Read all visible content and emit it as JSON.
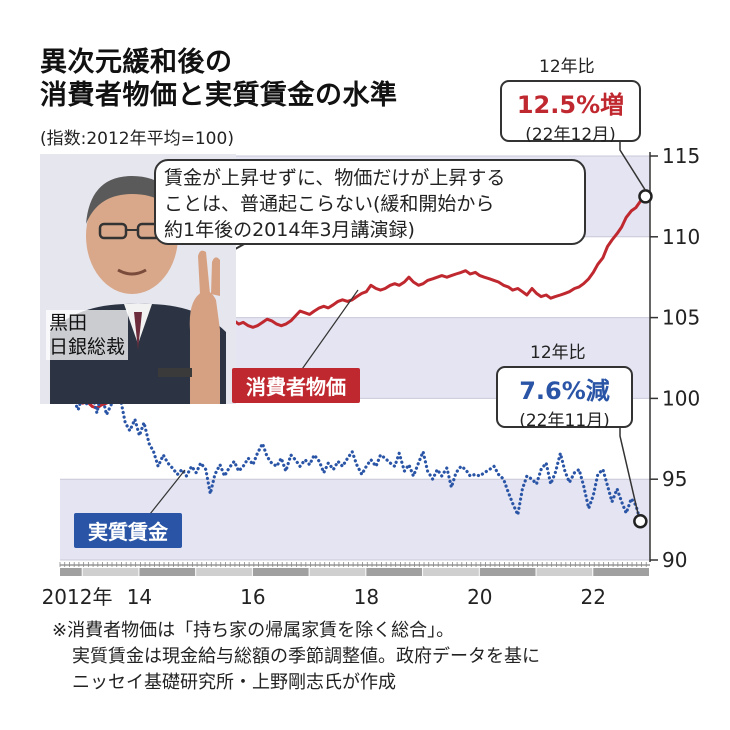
{
  "title_line1": "異次元緩和後の",
  "title_line2": "消費者物価と実質賃金の水準",
  "subtitle": "(指数:2012年平均=100)",
  "quote": {
    "line1": "賃金が上昇せずに、物価だけが上昇する",
    "line2": "ことは、普通起こらない(緩和開始から",
    "line3": "約1年後の2014年3月講演録)"
  },
  "person": {
    "line1": "黒田",
    "line2": "日銀総裁"
  },
  "cpi_callout": {
    "tag": "12年比",
    "value": "12.5%増",
    "date": "(22年12月)",
    "color": "#c0282f"
  },
  "wage_callout": {
    "tag": "12年比",
    "value": "7.6%減",
    "date": "(22年11月)",
    "color": "#2a55a6"
  },
  "footnote": {
    "line1": "※消費者物価は「持ち家の帰属家賃を除く総合」。",
    "line2": "実質賃金は現金給与総額の季節調整値。政府データを基に",
    "line3": "ニッセイ基礎研究所・上野剛志氏が作成"
  },
  "chart_data": {
    "type": "line",
    "x_unit": "year",
    "xlim": [
      2012.6,
      2023.0
    ],
    "ylim": [
      90,
      115
    ],
    "y_ticks": [
      90,
      95,
      100,
      105,
      110,
      115
    ],
    "x_ticks": [
      {
        "x": 2012.9,
        "label": "2012年"
      },
      {
        "x": 2014,
        "label": "14"
      },
      {
        "x": 2016,
        "label": "16"
      },
      {
        "x": 2018,
        "label": "18"
      },
      {
        "x": 2020,
        "label": "20"
      },
      {
        "x": 2022,
        "label": "22"
      }
    ],
    "bands": [
      [
        110,
        115
      ],
      [
        100,
        105
      ],
      [
        90,
        95
      ]
    ],
    "series": [
      {
        "name": "消費者物価",
        "color": "#c0282f",
        "style": "solid",
        "points": [
          [
            2012.67,
            100.2
          ],
          [
            2012.75,
            100.5
          ],
          [
            2012.83,
            100.1
          ],
          [
            2012.92,
            99.9
          ],
          [
            2013.0,
            99.7
          ],
          [
            2013.08,
            99.8
          ],
          [
            2013.17,
            99.5
          ],
          [
            2013.25,
            99.4
          ],
          [
            2013.33,
            99.6
          ],
          [
            2013.42,
            99.7
          ],
          [
            2013.5,
            100.0
          ],
          [
            2013.58,
            100.5
          ],
          [
            2013.67,
            101.0
          ],
          [
            2013.75,
            101.2
          ],
          [
            2013.83,
            101.4
          ],
          [
            2013.92,
            101.6
          ],
          [
            2014.0,
            101.5
          ],
          [
            2014.08,
            101.6
          ],
          [
            2014.17,
            101.8
          ],
          [
            2014.25,
            104.0
          ],
          [
            2014.33,
            104.6
          ],
          [
            2014.42,
            104.9
          ],
          [
            2014.5,
            104.7
          ],
          [
            2014.58,
            105.0
          ],
          [
            2014.67,
            105.2
          ],
          [
            2014.75,
            105.0
          ],
          [
            2014.83,
            104.8
          ],
          [
            2014.92,
            104.6
          ],
          [
            2015.0,
            104.4
          ],
          [
            2015.08,
            104.6
          ],
          [
            2015.17,
            104.9
          ],
          [
            2015.25,
            105.2
          ],
          [
            2015.33,
            105.3
          ],
          [
            2015.42,
            105.1
          ],
          [
            2015.5,
            104.9
          ],
          [
            2015.58,
            105.0
          ],
          [
            2015.67,
            104.8
          ],
          [
            2015.75,
            104.6
          ],
          [
            2015.83,
            104.7
          ],
          [
            2015.92,
            104.5
          ],
          [
            2016.0,
            104.4
          ],
          [
            2016.08,
            104.5
          ],
          [
            2016.17,
            104.7
          ],
          [
            2016.25,
            104.9
          ],
          [
            2016.33,
            104.8
          ],
          [
            2016.42,
            104.6
          ],
          [
            2016.5,
            104.5
          ],
          [
            2016.58,
            104.6
          ],
          [
            2016.67,
            104.8
          ],
          [
            2016.75,
            105.1
          ],
          [
            2016.83,
            105.4
          ],
          [
            2016.92,
            105.3
          ],
          [
            2017.0,
            105.2
          ],
          [
            2017.08,
            105.4
          ],
          [
            2017.17,
            105.6
          ],
          [
            2017.25,
            105.7
          ],
          [
            2017.33,
            105.6
          ],
          [
            2017.42,
            105.8
          ],
          [
            2017.5,
            106.0
          ],
          [
            2017.58,
            106.1
          ],
          [
            2017.67,
            106.0
          ],
          [
            2017.75,
            106.1
          ],
          [
            2017.83,
            106.3
          ],
          [
            2017.92,
            106.5
          ],
          [
            2018.0,
            106.6
          ],
          [
            2018.08,
            107.0
          ],
          [
            2018.17,
            106.8
          ],
          [
            2018.25,
            106.7
          ],
          [
            2018.33,
            106.8
          ],
          [
            2018.42,
            107.0
          ],
          [
            2018.5,
            107.1
          ],
          [
            2018.58,
            107.0
          ],
          [
            2018.67,
            107.2
          ],
          [
            2018.75,
            107.5
          ],
          [
            2018.83,
            107.2
          ],
          [
            2018.92,
            107.0
          ],
          [
            2019.0,
            107.1
          ],
          [
            2019.08,
            107.3
          ],
          [
            2019.17,
            107.4
          ],
          [
            2019.25,
            107.5
          ],
          [
            2019.33,
            107.6
          ],
          [
            2019.42,
            107.5
          ],
          [
            2019.5,
            107.6
          ],
          [
            2019.58,
            107.7
          ],
          [
            2019.67,
            107.8
          ],
          [
            2019.75,
            107.9
          ],
          [
            2019.83,
            107.7
          ],
          [
            2019.92,
            107.8
          ],
          [
            2020.0,
            107.6
          ],
          [
            2020.08,
            107.5
          ],
          [
            2020.17,
            107.4
          ],
          [
            2020.25,
            107.3
          ],
          [
            2020.33,
            107.2
          ],
          [
            2020.42,
            107.0
          ],
          [
            2020.5,
            106.9
          ],
          [
            2020.58,
            106.7
          ],
          [
            2020.67,
            106.8
          ],
          [
            2020.75,
            106.6
          ],
          [
            2020.83,
            106.4
          ],
          [
            2020.92,
            106.8
          ],
          [
            2021.0,
            106.5
          ],
          [
            2021.08,
            106.3
          ],
          [
            2021.17,
            106.4
          ],
          [
            2021.25,
            106.2
          ],
          [
            2021.33,
            106.3
          ],
          [
            2021.42,
            106.4
          ],
          [
            2021.5,
            106.5
          ],
          [
            2021.58,
            106.6
          ],
          [
            2021.67,
            106.8
          ],
          [
            2021.75,
            106.9
          ],
          [
            2021.83,
            107.1
          ],
          [
            2021.92,
            107.4
          ],
          [
            2022.0,
            107.8
          ],
          [
            2022.08,
            108.3
          ],
          [
            2022.17,
            108.7
          ],
          [
            2022.25,
            109.4
          ],
          [
            2022.33,
            109.8
          ],
          [
            2022.42,
            110.2
          ],
          [
            2022.5,
            110.6
          ],
          [
            2022.58,
            111.2
          ],
          [
            2022.67,
            111.6
          ],
          [
            2022.75,
            111.8
          ],
          [
            2022.83,
            112.2
          ],
          [
            2022.92,
            112.5
          ]
        ]
      },
      {
        "name": "実質賃金",
        "color": "#2a55a6",
        "style": "dotted",
        "points": [
          [
            2012.67,
            100.3
          ],
          [
            2012.75,
            100.5
          ],
          [
            2012.83,
            100.0
          ],
          [
            2012.92,
            99.3
          ],
          [
            2013.0,
            100.2
          ],
          [
            2013.08,
            99.6
          ],
          [
            2013.17,
            100.3
          ],
          [
            2013.25,
            99.1
          ],
          [
            2013.33,
            100.4
          ],
          [
            2013.42,
            99.0
          ],
          [
            2013.5,
            99.6
          ],
          [
            2013.58,
            100.3
          ],
          [
            2013.67,
            99.9
          ],
          [
            2013.75,
            98.5
          ],
          [
            2013.83,
            98.0
          ],
          [
            2013.92,
            98.7
          ],
          [
            2014.0,
            97.7
          ],
          [
            2014.08,
            98.5
          ],
          [
            2014.17,
            97.2
          ],
          [
            2014.25,
            96.7
          ],
          [
            2014.33,
            95.8
          ],
          [
            2014.42,
            96.5
          ],
          [
            2014.5,
            96.0
          ],
          [
            2014.58,
            95.7
          ],
          [
            2014.67,
            95.3
          ],
          [
            2014.75,
            95.6
          ],
          [
            2014.83,
            95.2
          ],
          [
            2014.92,
            95.8
          ],
          [
            2015.0,
            95.4
          ],
          [
            2015.08,
            96.0
          ],
          [
            2015.17,
            95.6
          ],
          [
            2015.25,
            94.1
          ],
          [
            2015.33,
            95.3
          ],
          [
            2015.42,
            95.9
          ],
          [
            2015.5,
            95.2
          ],
          [
            2015.58,
            95.7
          ],
          [
            2015.67,
            96.1
          ],
          [
            2015.75,
            95.5
          ],
          [
            2015.83,
            95.8
          ],
          [
            2015.92,
            96.3
          ],
          [
            2016.0,
            95.9
          ],
          [
            2016.08,
            96.6
          ],
          [
            2016.17,
            97.2
          ],
          [
            2016.25,
            96.4
          ],
          [
            2016.33,
            96.0
          ],
          [
            2016.42,
            95.8
          ],
          [
            2016.5,
            96.3
          ],
          [
            2016.58,
            95.5
          ],
          [
            2016.67,
            96.5
          ],
          [
            2016.75,
            96.2
          ],
          [
            2016.83,
            95.8
          ],
          [
            2016.92,
            96.2
          ],
          [
            2017.0,
            95.9
          ],
          [
            2017.08,
            96.5
          ],
          [
            2017.17,
            96.1
          ],
          [
            2017.25,
            95.4
          ],
          [
            2017.33,
            96.0
          ],
          [
            2017.42,
            95.6
          ],
          [
            2017.5,
            96.1
          ],
          [
            2017.58,
            95.8
          ],
          [
            2017.67,
            96.3
          ],
          [
            2017.75,
            96.7
          ],
          [
            2017.83,
            95.9
          ],
          [
            2017.92,
            95.3
          ],
          [
            2018.0,
            95.8
          ],
          [
            2018.08,
            96.2
          ],
          [
            2018.17,
            95.8
          ],
          [
            2018.25,
            96.5
          ],
          [
            2018.33,
            96.3
          ],
          [
            2018.42,
            96.0
          ],
          [
            2018.5,
            95.8
          ],
          [
            2018.58,
            96.6
          ],
          [
            2018.67,
            95.5
          ],
          [
            2018.75,
            95.9
          ],
          [
            2018.83,
            95.2
          ],
          [
            2018.92,
            96.0
          ],
          [
            2019.0,
            96.7
          ],
          [
            2019.08,
            95.5
          ],
          [
            2019.17,
            95.0
          ],
          [
            2019.25,
            95.6
          ],
          [
            2019.33,
            95.2
          ],
          [
            2019.42,
            95.7
          ],
          [
            2019.5,
            94.5
          ],
          [
            2019.58,
            95.4
          ],
          [
            2019.67,
            95.8
          ],
          [
            2019.75,
            95.6
          ],
          [
            2019.83,
            95.2
          ],
          [
            2019.92,
            95.3
          ],
          [
            2020.0,
            95.2
          ],
          [
            2020.08,
            95.4
          ],
          [
            2020.17,
            95.6
          ],
          [
            2020.25,
            95.8
          ],
          [
            2020.33,
            95.3
          ],
          [
            2020.42,
            95.0
          ],
          [
            2020.5,
            94.2
          ],
          [
            2020.58,
            93.5
          ],
          [
            2020.67,
            92.8
          ],
          [
            2020.75,
            94.4
          ],
          [
            2020.83,
            95.2
          ],
          [
            2020.92,
            95.0
          ],
          [
            2021.0,
            94.7
          ],
          [
            2021.08,
            95.6
          ],
          [
            2021.17,
            96.0
          ],
          [
            2021.25,
            94.7
          ],
          [
            2021.33,
            95.4
          ],
          [
            2021.42,
            96.6
          ],
          [
            2021.5,
            95.5
          ],
          [
            2021.58,
            94.8
          ],
          [
            2021.67,
            95.4
          ],
          [
            2021.75,
            95.6
          ],
          [
            2021.83,
            94.6
          ],
          [
            2021.92,
            93.2
          ],
          [
            2022.0,
            94.0
          ],
          [
            2022.08,
            95.3
          ],
          [
            2022.17,
            95.6
          ],
          [
            2022.25,
            94.6
          ],
          [
            2022.33,
            93.6
          ],
          [
            2022.42,
            94.4
          ],
          [
            2022.5,
            93.6
          ],
          [
            2022.58,
            92.9
          ],
          [
            2022.67,
            93.8
          ],
          [
            2022.75,
            93.4
          ],
          [
            2022.83,
            92.4
          ]
        ]
      }
    ]
  }
}
